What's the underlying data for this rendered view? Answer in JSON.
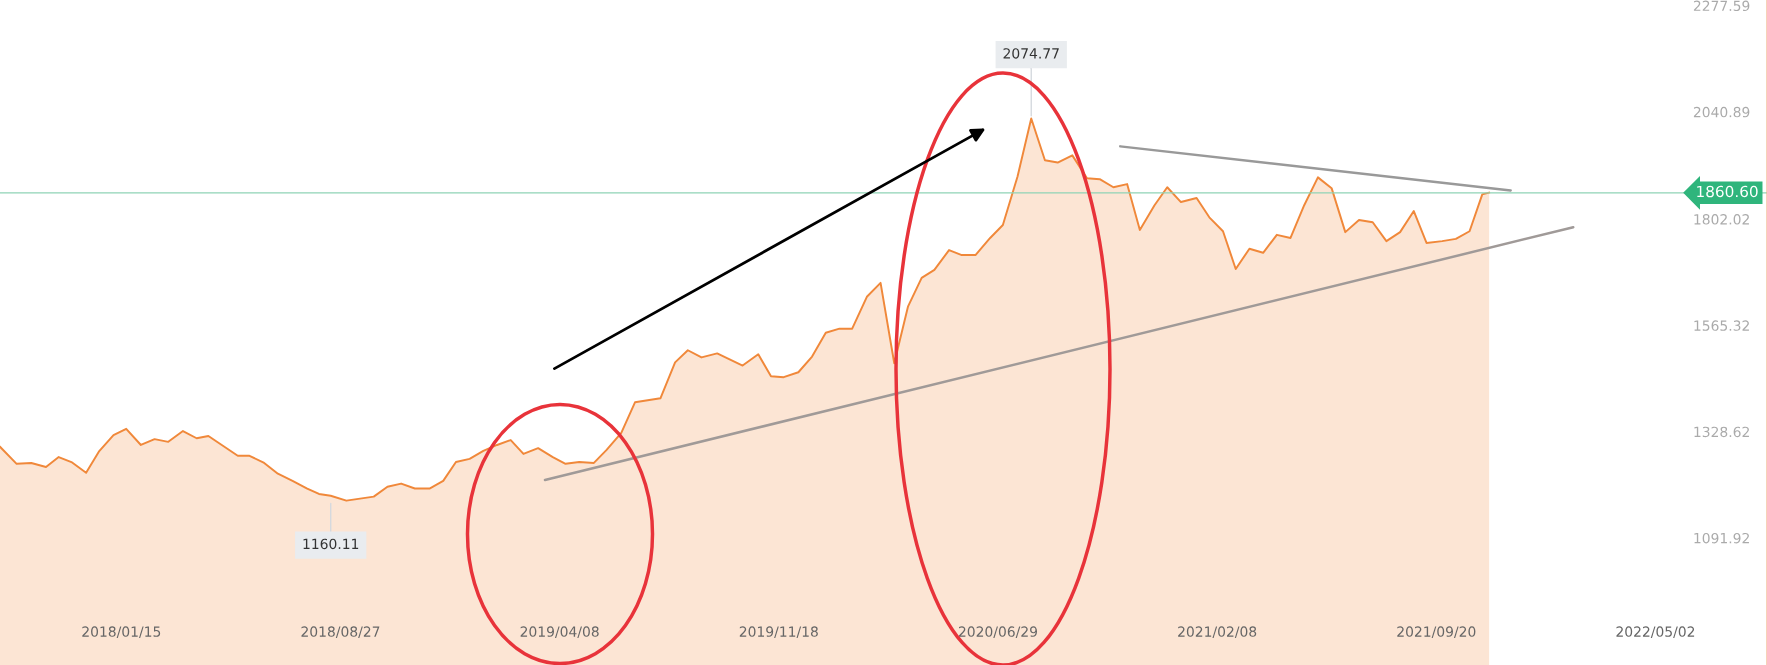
{
  "chart_data": {
    "type": "area",
    "x": [
      "2017-09-13",
      "2017-09-30",
      "2017-10-15",
      "2017-10-30",
      "2017-11-12",
      "2017-11-25",
      "2017-12-10",
      "2017-12-23",
      "2018-01-07",
      "2018-01-20",
      "2018-02-04",
      "2018-02-18",
      "2018-03-04",
      "2018-03-19",
      "2018-04-02",
      "2018-04-14",
      "2018-05-14",
      "2018-05-26",
      "2018-06-10",
      "2018-06-24",
      "2018-07-09",
      "2018-07-24",
      "2018-08-05",
      "2018-08-17",
      "2018-09-02",
      "2018-09-30",
      "2018-10-14",
      "2018-10-28",
      "2018-11-11",
      "2018-11-26",
      "2018-12-10",
      "2018-12-23",
      "2019-01-06",
      "2019-01-20",
      "2019-02-03",
      "2019-02-17",
      "2019-03-02",
      "2019-03-17",
      "2019-04-01",
      "2019-04-14",
      "2019-04-28",
      "2019-05-13",
      "2019-05-26",
      "2019-06-10",
      "2019-06-24",
      "2019-07-20",
      "2019-08-04",
      "2019-08-17",
      "2019-08-31",
      "2019-09-16",
      "2019-10-12",
      "2019-10-28",
      "2019-11-10",
      "2019-11-23",
      "2019-12-08",
      "2019-12-22",
      "2020-01-05",
      "2020-01-19",
      "2020-02-01",
      "2020-02-16",
      "2020-03-01",
      "2020-03-15",
      "2020-03-29",
      "2020-04-12",
      "2020-04-25",
      "2020-05-10",
      "2020-05-23",
      "2020-06-06",
      "2020-06-21",
      "2020-07-04",
      "2020-07-19",
      "2020-08-02",
      "2020-08-16",
      "2020-08-29",
      "2020-09-13",
      "2020-09-28",
      "2020-10-11",
      "2020-10-25",
      "2020-11-08",
      "2020-11-21",
      "2020-12-06",
      "2020-12-19",
      "2021-01-02",
      "2021-01-18",
      "2021-01-31",
      "2021-02-14",
      "2021-02-27",
      "2021-03-13",
      "2021-03-27",
      "2021-04-10",
      "2021-04-24",
      "2021-05-08",
      "2021-05-22",
      "2021-06-05",
      "2021-06-19",
      "2021-07-03",
      "2021-07-17",
      "2021-07-31",
      "2021-08-14",
      "2021-08-28",
      "2021-09-10",
      "2021-09-26",
      "2021-10-10",
      "2021-10-24",
      "2021-11-06",
      "2021-11-13"
    ],
    "series": [
      {
        "color": "#f0883a",
        "values": [
          1295,
          1257,
          1259,
          1250,
          1272,
          1261,
          1237,
          1284,
          1321,
          1335,
          1299,
          1312,
          1306,
          1330,
          1314,
          1319,
          1275,
          1275,
          1259,
          1235,
          1219,
          1202,
          1190,
          1186,
          1175,
          1184,
          1206,
          1213,
          1202,
          1202,
          1219,
          1261,
          1268,
          1286,
          1299,
          1310,
          1279,
          1292,
          1272,
          1257,
          1261,
          1259,
          1288,
          1326,
          1394,
          1403,
          1483,
          1510,
          1494,
          1503,
          1476,
          1501,
          1452,
          1450,
          1461,
          1496,
          1549,
          1558,
          1558,
          1629,
          1660,
          1481,
          1607,
          1671,
          1689,
          1733,
          1722,
          1722,
          1760,
          1789,
          1897,
          2026,
          1933,
          1928,
          1944,
          1893,
          1891,
          1873,
          1880,
          1778,
          1833,
          1873,
          1840,
          1849,
          1806,
          1775,
          1691,
          1736,
          1727,
          1767,
          1760,
          1833,
          1895,
          1871,
          1773,
          1800,
          1795,
          1753,
          1773,
          1820,
          1749,
          1753,
          1758,
          1775,
          1857,
          1861
        ]
      },
      {
        "type": "line",
        "color": "#999999",
        "x": [
          "2020-11-01",
          "2021-12-05"
        ],
        "values": [
          1964,
          1866
        ]
      },
      {
        "type": "line",
        "color": "#a09a98",
        "x": [
          "2019-03-24",
          "2022-02-07"
        ],
        "values": [
          1221,
          1784
        ]
      }
    ],
    "xlim": [
      "2017-09-13",
      "2022-08-24"
    ],
    "ylim": [
      809,
      2290
    ],
    "xticks": [
      {
        "value": "2018-01-15",
        "label": "2018/01/15"
      },
      {
        "value": "2018-08-27",
        "label": "2018/08/27"
      },
      {
        "value": "2019-04-08",
        "label": "2019/04/08"
      },
      {
        "value": "2019-11-18",
        "label": "2019/11/18"
      },
      {
        "value": "2020-06-29",
        "label": "2020/06/29"
      },
      {
        "value": "2021-02-08",
        "label": "2021/02/08"
      },
      {
        "value": "2021-09-20",
        "label": "2021/09/20"
      },
      {
        "value": "2022-05-02",
        "label": "2022/05/02"
      }
    ],
    "yticks": [
      1091.92,
      1328.62,
      1565.32,
      1802.02,
      2040.89,
      2277.59
    ],
    "ref_lines": [
      {
        "axis": "y",
        "value": 1860.6,
        "label": "1860.60",
        "color": "#8fd3b6"
      }
    ],
    "annotations": [
      {
        "text": "2074.77",
        "x": "2020-08-02",
        "y": 2026
      },
      {
        "text": "1160.11",
        "x": "2018-08-17",
        "y": 1175
      }
    ]
  }
}
